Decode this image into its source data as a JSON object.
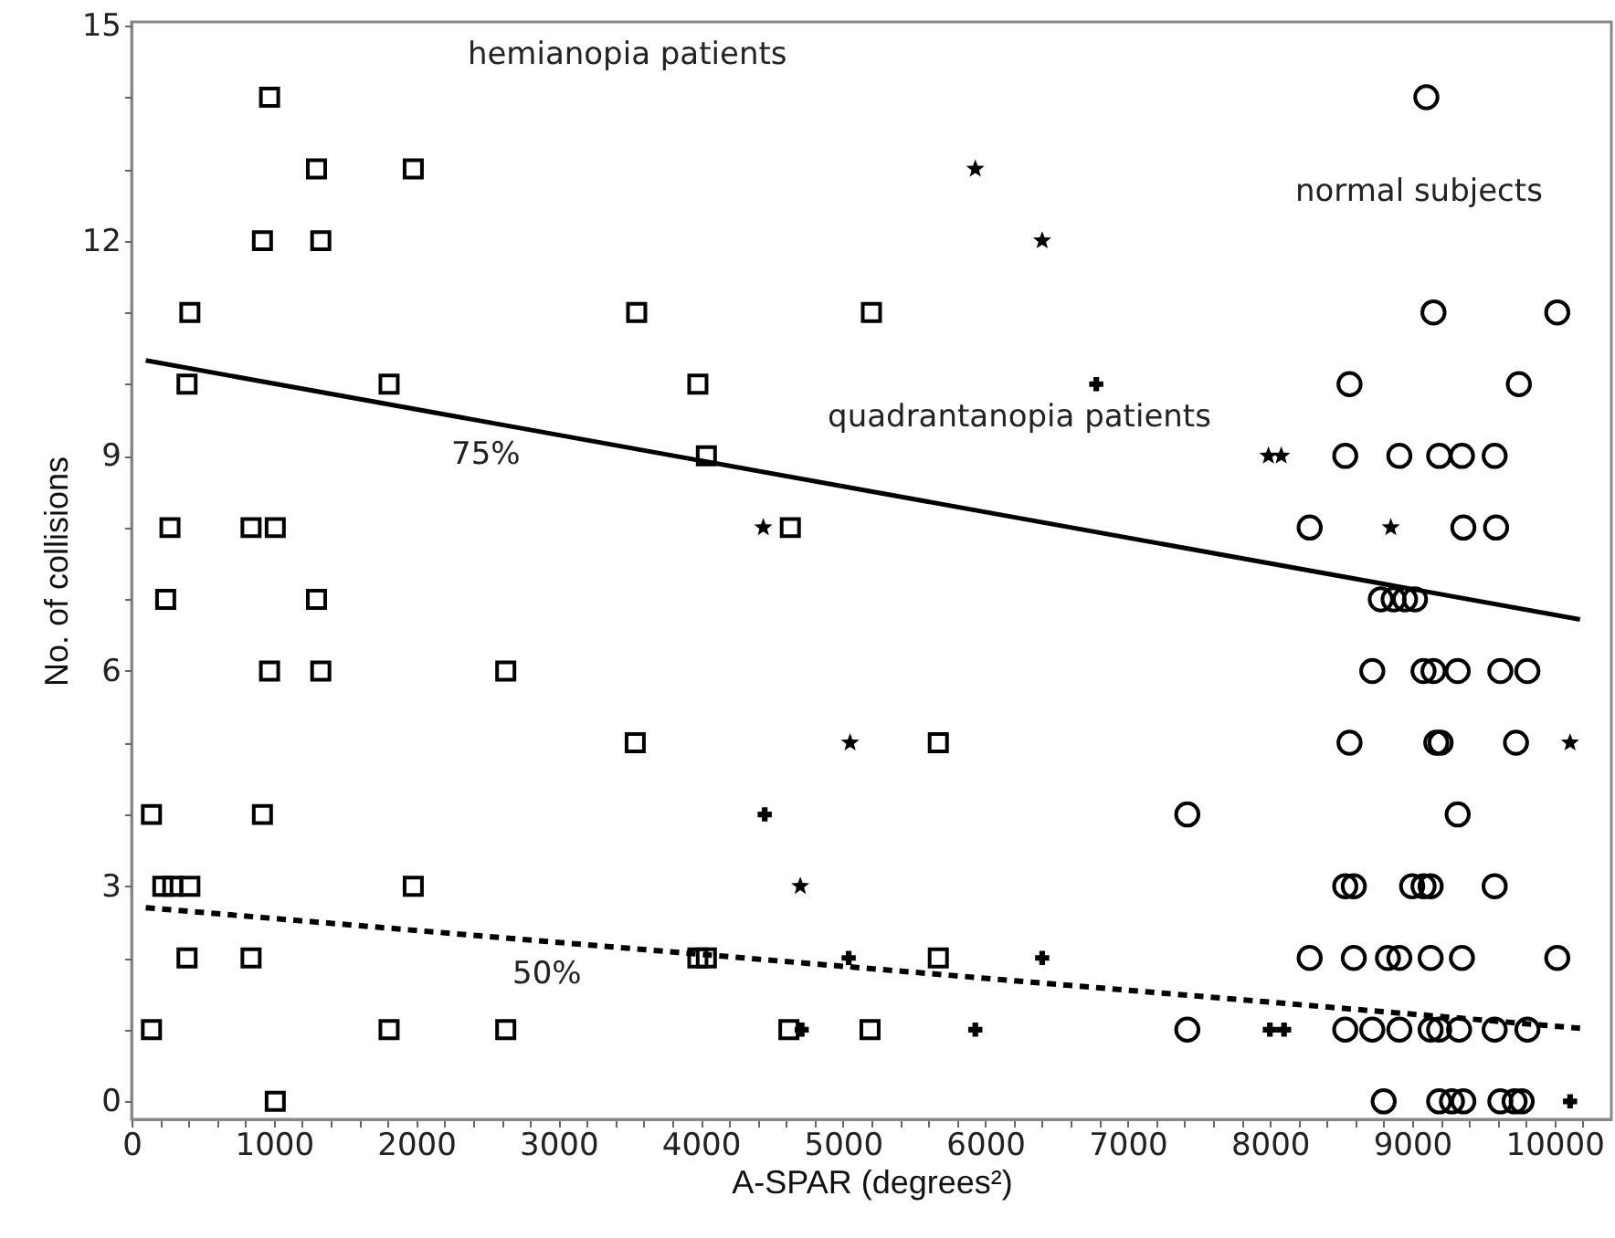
{
  "chart_data": {
    "type": "scatter",
    "xlabel": "A-SPAR (degrees²)",
    "ylabel": "No. of collisions",
    "xlim": [
      0,
      10400
    ],
    "ylim": [
      -0.25,
      15.05
    ],
    "xticks": [
      0,
      {
        "value": 200,
        "label": null
      },
      {
        "value": 400,
        "label": null
      },
      {
        "value": 600,
        "label": null
      },
      {
        "value": 800,
        "label": null
      },
      1000,
      {
        "value": 1200,
        "label": null
      },
      {
        "value": 1400,
        "label": null
      },
      {
        "value": 1600,
        "label": null
      },
      {
        "value": 1800,
        "label": null
      },
      2000,
      {
        "value": 2200,
        "label": null
      },
      {
        "value": 2400,
        "label": null
      },
      {
        "value": 2600,
        "label": null
      },
      {
        "value": 2800,
        "label": null
      },
      3000,
      {
        "value": 3200,
        "label": null
      },
      {
        "value": 3400,
        "label": null
      },
      {
        "value": 3600,
        "label": null
      },
      {
        "value": 3800,
        "label": null
      },
      4000,
      {
        "value": 4200,
        "label": null
      },
      {
        "value": 4400,
        "label": null
      },
      {
        "value": 4600,
        "label": null
      },
      {
        "value": 4800,
        "label": null
      },
      5000,
      {
        "value": 5200,
        "label": null
      },
      {
        "value": 5400,
        "label": null
      },
      {
        "value": 5600,
        "label": null
      },
      {
        "value": 5800,
        "label": null
      },
      6000,
      {
        "value": 6200,
        "label": null
      },
      {
        "value": 6400,
        "label": null
      },
      {
        "value": 6600,
        "label": null
      },
      {
        "value": 6800,
        "label": null
      },
      7000,
      {
        "value": 7200,
        "label": null
      },
      {
        "value": 7400,
        "label": null
      },
      {
        "value": 7600,
        "label": null
      },
      {
        "value": 7800,
        "label": null
      },
      8000,
      {
        "value": 8200,
        "label": null
      },
      {
        "value": 8400,
        "label": null
      },
      {
        "value": 8600,
        "label": null
      },
      {
        "value": 8800,
        "label": null
      },
      9000,
      {
        "value": 9200,
        "label": null
      },
      {
        "value": 9400,
        "label": null
      },
      {
        "value": 9600,
        "label": null
      },
      {
        "value": 9800,
        "label": null
      },
      10000,
      {
        "value": 10200,
        "label": null
      }
    ],
    "yticks": [
      0,
      {
        "value": 1,
        "label": null
      },
      {
        "value": 2,
        "label": null
      },
      3,
      {
        "value": 4,
        "label": null
      },
      {
        "value": 5,
        "label": null
      },
      6,
      {
        "value": 7,
        "label": null
      },
      {
        "value": 8,
        "label": null
      },
      9,
      {
        "value": 10,
        "label": null
      },
      {
        "value": 11,
        "label": null
      },
      12,
      {
        "value": 13,
        "label": null
      },
      {
        "value": 14,
        "label": null
      },
      15
    ],
    "series": [
      {
        "marker": "square",
        "color": "#000000",
        "x": [
          970,
          1300,
          1980,
          920,
          1330,
          410,
          3550,
          5200,
          390,
          1810,
          3980,
          4040,
          270,
          840,
          1010,
          4630,
          240,
          2630,
          140,
          5670
        ],
        "values": [
          14,
          13,
          13,
          12,
          12,
          11,
          11,
          11,
          10,
          10,
          10,
          9,
          8,
          8,
          8,
          8,
          7,
          6,
          4,
          5
        ]
      },
      {
        "marker": "square",
        "color": "#000000",
        "x": [
          1300,
          970,
          1330,
          3540,
          920,
          220,
          290,
          410,
          1980,
          390,
          840,
          3980,
          4040,
          5670,
          140,
          1810,
          2630,
          4620,
          5190,
          1010
        ],
        "values": [
          7,
          6,
          6,
          5,
          4,
          3,
          3,
          3,
          3,
          2,
          2,
          2,
          2,
          2,
          1,
          1,
          1,
          1,
          1,
          0
        ]
      },
      {
        "marker": "star",
        "color": "#000000",
        "x": [
          5930,
          6400,
          7990,
          8080,
          8850,
          4440,
          5050,
          4700,
          10110
        ],
        "values": [
          13,
          12,
          9,
          9,
          8,
          8,
          5,
          3,
          5
        ]
      },
      {
        "marker": "cross",
        "color": "#000000",
        "x": [
          6780,
          4450,
          5040,
          6400,
          4710,
          5930,
          8000,
          8100,
          10110
        ],
        "values": [
          10,
          4,
          2,
          2,
          1,
          1,
          1,
          1,
          0
        ]
      },
      {
        "marker": "circle",
        "color": "#000000",
        "x": [
          9100,
          9150,
          10020,
          8560,
          9750,
          8530,
          8910,
          9190,
          9350,
          9580,
          8280,
          9360,
          9590,
          8780,
          8870,
          8950,
          9020,
          8720,
          9080,
          9150,
          9320,
          9620,
          9810,
          8560,
          9170,
          9200,
          9730,
          7420,
          9320,
          8590
        ],
        "values": [
          14,
          11,
          11,
          10,
          10,
          9,
          9,
          9,
          9,
          9,
          8,
          8,
          8,
          7,
          7,
          7,
          7,
          6,
          6,
          6,
          6,
          6,
          6,
          5,
          5,
          5,
          5,
          4,
          4,
          3
        ]
      },
      {
        "marker": "circle",
        "color": "#000000",
        "x": [
          8530,
          9000,
          9080,
          9130,
          9580,
          8280,
          8590,
          8830,
          8910,
          9130,
          9350,
          10020,
          7420,
          8530,
          8720,
          8910,
          9130,
          9190,
          9330,
          9580,
          9810,
          8800,
          9190,
          9280,
          9360,
          9620,
          9720,
          9770
        ],
        "values": [
          3,
          3,
          3,
          3,
          3,
          2,
          2,
          2,
          2,
          2,
          2,
          2,
          1,
          1,
          1,
          1,
          1,
          1,
          1,
          1,
          1,
          0,
          0,
          0,
          0,
          0,
          0,
          0
        ]
      },
      {
        "type": "line",
        "line_style": "solid",
        "color": "#000000",
        "x": [
          100,
          10180
        ],
        "values": [
          10.33,
          6.72
        ]
      },
      {
        "type": "line",
        "line_style": "dashed",
        "color": "#000000",
        "x": [
          100,
          10180
        ],
        "values": [
          2.7,
          1.02
        ]
      }
    ],
    "annotations": [
      "hemianopia patients",
      "normal subjects",
      "quadrantanopia patients",
      {
        "text": "75%",
        "x": 2490,
        "y": 9.47
      },
      {
        "text": "50%",
        "x": 2920,
        "y": 2.23
      }
    ]
  }
}
